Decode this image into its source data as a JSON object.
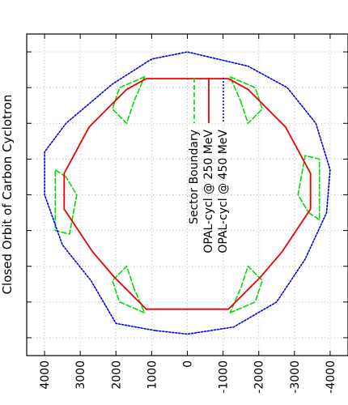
{
  "chart_data": {
    "type": "line",
    "title": "Closed Orbit of Carbon Cyclotron",
    "orientation": "rotated-90-ccw",
    "xlabel": "",
    "ylabel": "",
    "xlim": [
      -4500,
      4500
    ],
    "ylim": [
      -4500,
      4500
    ],
    "tick_values": [
      4000,
      3000,
      2000,
      1000,
      0,
      -1000,
      -2000,
      -3000,
      -4000
    ],
    "tick_labels": [
      "4000",
      "3000",
      "2000",
      "1000",
      "0",
      "-1000",
      "-2000",
      "-3000",
      "-4000"
    ],
    "grid": true,
    "legend_position": "center",
    "series": [
      {
        "name": "Sector Boundary",
        "style": "dashed",
        "color": "#00dd00",
        "segments": [
          [
            [
              -2600,
              1500
            ],
            [
              -2000,
              1700
            ],
            [
              -2400,
              2100
            ],
            [
              -3000,
              1900
            ],
            [
              -3300,
              1200
            ],
            [
              -2600,
              1500
            ]
          ],
          [
            [
              -3300,
              -1200
            ],
            [
              -3000,
              -1900
            ],
            [
              -2400,
              -2100
            ],
            [
              -2000,
              -1700
            ],
            [
              -2600,
              -1500
            ],
            [
              -3300,
              -1200
            ]
          ],
          [
            [
              -500,
              -3400
            ],
            [
              -700,
              -3700
            ],
            [
              1000,
              -3700
            ],
            [
              1100,
              -3300
            ],
            [
              0,
              -3100
            ],
            [
              -500,
              -3400
            ]
          ],
          [
            [
              2600,
              -1500
            ],
            [
              2000,
              -1700
            ],
            [
              2400,
              -2100
            ],
            [
              3000,
              -1900
            ],
            [
              3300,
              -1200
            ],
            [
              2600,
              -1500
            ]
          ],
          [
            [
              3300,
              1200
            ],
            [
              3000,
              1900
            ],
            [
              2400,
              2100
            ],
            [
              2000,
              1700
            ],
            [
              2600,
              1500
            ],
            [
              3300,
              1200
            ]
          ],
          [
            [
              500,
              3400
            ],
            [
              700,
              3700
            ],
            [
              -1000,
              3700
            ],
            [
              -1100,
              3300
            ],
            [
              0,
              3100
            ],
            [
              500,
              3400
            ]
          ]
        ]
      },
      {
        "name": "OPAL-cycl @ 250 MeV",
        "style": "solid",
        "color": "#ee0000",
        "points": [
          [
            -3200,
            1150
          ],
          [
            -2300,
            2050
          ],
          [
            -1600,
            2650
          ],
          [
            -400,
            3450
          ],
          [
            600,
            3450
          ],
          [
            1900,
            2750
          ],
          [
            2950,
            1700
          ],
          [
            3250,
            1150
          ],
          [
            3250,
            -1150
          ],
          [
            2950,
            -1700
          ],
          [
            1900,
            -2750
          ],
          [
            600,
            -3450
          ],
          [
            -400,
            -3450
          ],
          [
            -1600,
            -2650
          ],
          [
            -2300,
            -2050
          ],
          [
            -3200,
            -1150
          ],
          [
            -3200,
            1150
          ]
        ]
      },
      {
        "name": "OPAL-cycl @ 450 MeV",
        "style": "dotted",
        "color": "#0000dd",
        "points": [
          [
            -3800,
            900
          ],
          [
            -3600,
            2000
          ],
          [
            -2400,
            2700
          ],
          [
            -1400,
            3500
          ],
          [
            0,
            4000
          ],
          [
            1200,
            4000
          ],
          [
            2000,
            3400
          ],
          [
            3100,
            2100
          ],
          [
            3800,
            1000
          ],
          [
            4000,
            0
          ],
          [
            3600,
            -1700
          ],
          [
            3000,
            -2800
          ],
          [
            2000,
            -3600
          ],
          [
            700,
            -4000
          ],
          [
            -500,
            -3900
          ],
          [
            -1800,
            -3300
          ],
          [
            -3000,
            -2500
          ],
          [
            -3700,
            -1300
          ],
          [
            -3900,
            0
          ],
          [
            -3800,
            900
          ]
        ]
      }
    ]
  }
}
